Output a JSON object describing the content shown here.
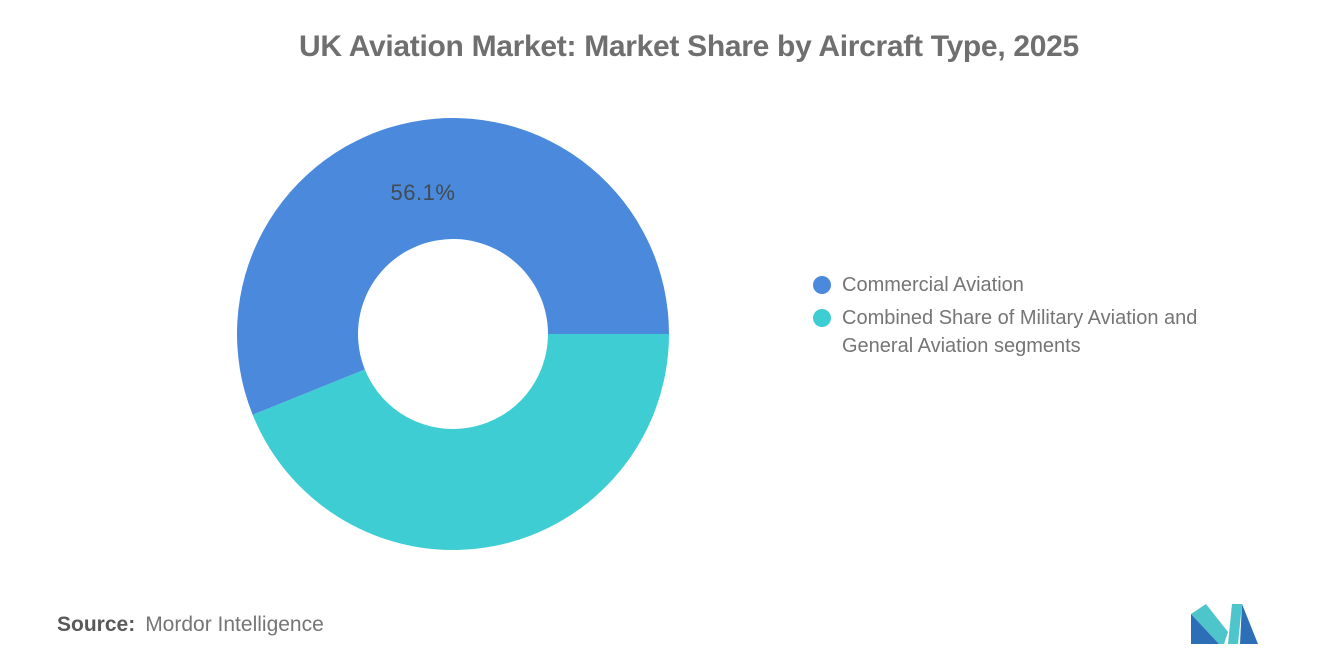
{
  "chart_data": {
    "type": "pie",
    "donut": true,
    "title": "UK Aviation Market: Market Share by Aircraft Type, 2025",
    "labels": [
      "Commercial Aviation",
      "Combined Share of Military Aviation and General Aviation segments"
    ],
    "values": [
      56.1,
      43.9
    ],
    "colors": [
      "#4A89DC",
      "#3DCDD3"
    ],
    "data_label": "56.1%",
    "start_angle_deg": 90,
    "direction": "counterclockwise",
    "legend_position": "right",
    "inner_radius_ratio": 0.44
  },
  "legend": {
    "items": [
      {
        "label": "Commercial Aviation",
        "color": "#4A89DC"
      },
      {
        "label": "Combined Share of Military Aviation and General Aviation segments",
        "color": "#3DCDD3"
      }
    ]
  },
  "source": {
    "label": "Source:",
    "value": "Mordor Intelligence"
  },
  "logo": {
    "name": "mordor-intelligence-logo",
    "teal": "#4EC5CB",
    "blue": "#2D6FB7"
  },
  "colors": {
    "title_text": "#6F6F6F",
    "legend_text": "#757575",
    "slice_label_text": "#414B52",
    "source_text": "#595959",
    "background": "#FFFFFF"
  }
}
